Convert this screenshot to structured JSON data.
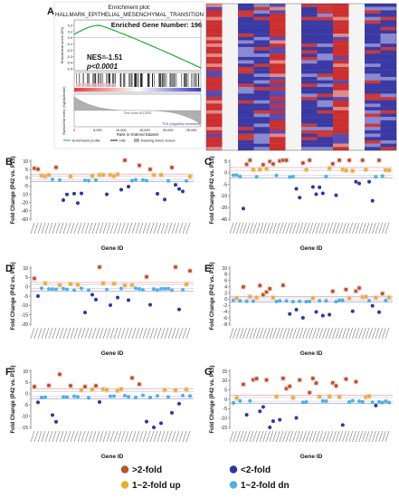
{
  "figure": {
    "panel_A": {
      "letter": "A",
      "plot_title_line1": "Enrichment plot:",
      "plot_title_line2": "HALLMARK_EPITHELIAL_MESENCHYMAL_TRANSITION",
      "enriched_gene_number": "Enriched Gene Number: 196",
      "nes": "NES=-1.51",
      "p_value": "p<0.0001",
      "es_axis_label": "Enrichment score (ES)",
      "metric_axis_label": "Ranked list metric (Signal2Noise)",
      "rank_axis_label": "Rank in Ordered Dataset",
      "zero_cross_text": "Zero cross at 12454",
      "neg_corr_text": "'P15' (negatively correlated)",
      "legend_enrichment": "Enrichment profile",
      "legend_hits": "Hits",
      "legend_ranking": "Ranking metric scores",
      "es_ticks": [
        "0.2",
        "0.1",
        "0.0",
        "-0.1",
        "-0.2",
        "-0.3",
        "-0.4",
        "-0.5"
      ],
      "rank_ticks": [
        "0",
        "5,000",
        "10,000",
        "15,000",
        "20,000",
        "25,000"
      ],
      "colors": {
        "es_curve": "#22aa33",
        "hits": "#111111",
        "heat_high": "#d9302b",
        "heat_low": "#3a3aa8"
      }
    },
    "scatter_panels": [
      {
        "letter": "B",
        "ylabel": "Fold Change (P42 vs. P15)",
        "xlabel": "Gene ID",
        "yticks": [
          "10",
          "5",
          "0",
          "-5",
          "-10",
          "-20",
          "-40",
          "-60"
        ]
      },
      {
        "letter": "C",
        "ylabel": "Fold Change (P42 vs. P15)",
        "xlabel": "Gene ID",
        "yticks": [
          "5",
          "0",
          "-5",
          "-10",
          "-20",
          "-40"
        ]
      },
      {
        "letter": "D",
        "ylabel": "Fold Change (P42 vs. P15)",
        "xlabel": "Gene ID",
        "yticks": [
          "10",
          "5",
          "0",
          "-5",
          "-10",
          "-15",
          "-20"
        ]
      },
      {
        "letter": "E",
        "ylabel": "Fold Change (P42 vs. P15)",
        "xlabel": "Gene ID",
        "yticks": [
          "10",
          "8",
          "6",
          "4",
          "2",
          "0",
          "-2",
          "-4",
          "-6",
          "-8"
        ]
      },
      {
        "letter": "F",
        "ylabel": "Fold Change (P42 vs. P15)",
        "xlabel": "Gene ID",
        "yticks": [
          "10",
          "5",
          "0",
          "-5",
          "-10",
          "-15"
        ]
      },
      {
        "letter": "G",
        "ylabel": "Fold Change (P42 vs. P15)",
        "xlabel": "Gene ID",
        "yticks": [
          "15",
          "10",
          "5",
          "0",
          "-5",
          "-10",
          "-15"
        ]
      }
    ],
    "legend": [
      {
        "label": ">2-fold",
        "color": "#b5552a"
      },
      {
        "label": "<2-fold",
        "color": "#2b3a9a"
      },
      {
        "label": "1~2-fold up",
        "color": "#e0b32a"
      },
      {
        "label": "1~2-fold dn",
        "color": "#4fb0e0"
      }
    ]
  }
}
